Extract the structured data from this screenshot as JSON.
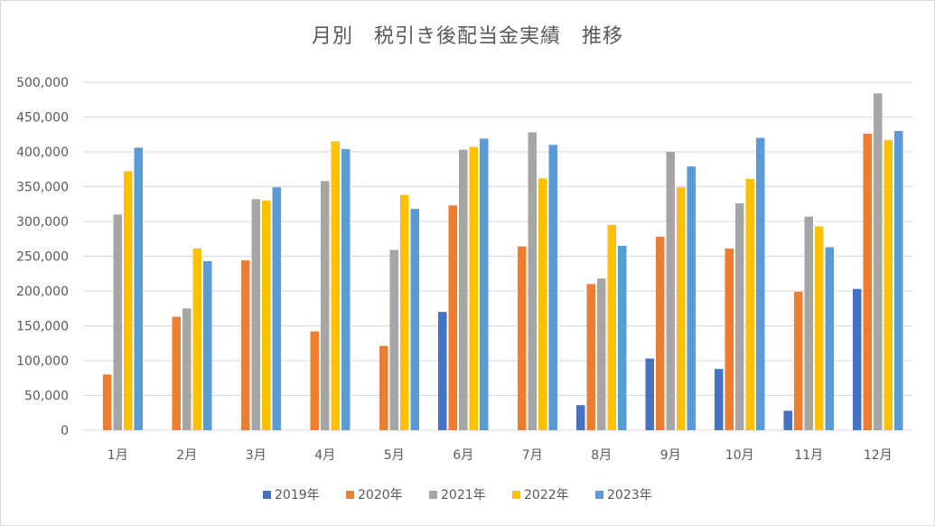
{
  "chart_data": {
    "type": "bar",
    "title": "月別　税引き後配当金実績　推移",
    "categories": [
      "1月",
      "2月",
      "3月",
      "4月",
      "5月",
      "6月",
      "7月",
      "8月",
      "9月",
      "10月",
      "11月",
      "12月"
    ],
    "ylim": [
      0,
      500000
    ],
    "yticks": [
      "0",
      "50,000",
      "100,000",
      "150,000",
      "200,000",
      "250,000",
      "300,000",
      "350,000",
      "400,000",
      "450,000",
      "500,000"
    ],
    "grid": true,
    "legend": "bottom",
    "series": [
      {
        "name": "2019年",
        "color": "#4472c4",
        "values": [
          0,
          0,
          0,
          0,
          0,
          170000,
          0,
          36000,
          103000,
          88000,
          28000,
          203000
        ]
      },
      {
        "name": "2020年",
        "color": "#ed7d31",
        "values": [
          80000,
          163000,
          244000,
          142000,
          121000,
          323000,
          264000,
          210000,
          278000,
          261000,
          199000,
          426000
        ]
      },
      {
        "name": "2021年",
        "color": "#a5a5a5",
        "values": [
          310000,
          175000,
          332000,
          358000,
          259000,
          403000,
          428000,
          218000,
          400000,
          326000,
          307000,
          484000
        ]
      },
      {
        "name": "2022年",
        "color": "#ffc000",
        "values": [
          372000,
          261000,
          330000,
          415000,
          338000,
          407000,
          362000,
          295000,
          349000,
          361000,
          293000,
          417000
        ]
      },
      {
        "name": "2023年",
        "color": "#5b9bd5",
        "values": [
          406000,
          243000,
          349000,
          404000,
          318000,
          419000,
          410000,
          265000,
          379000,
          420000,
          263000,
          430000
        ]
      }
    ]
  }
}
